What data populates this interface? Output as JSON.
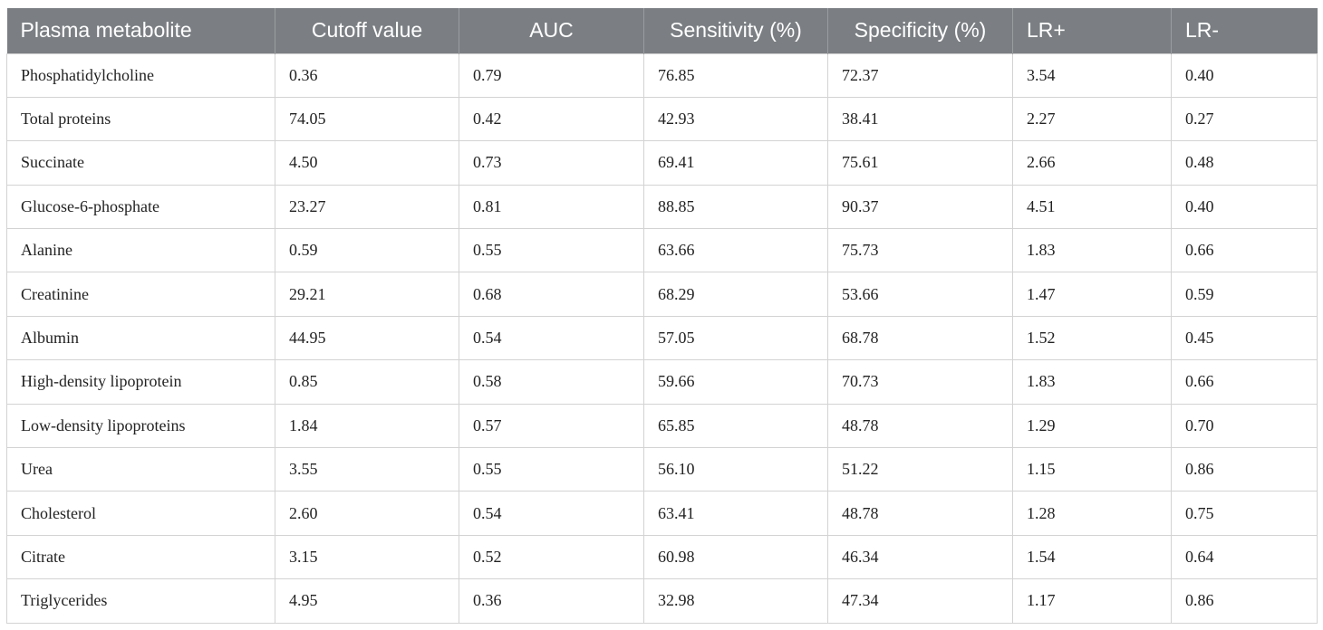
{
  "table": {
    "headers": [
      "Plasma metabolite",
      "Cutoff value",
      "AUC",
      "Sensitivity (%)",
      "Specificity (%)",
      "LR+",
      "LR-"
    ],
    "rows": [
      [
        "Phosphatidylcholine",
        "0.36",
        "0.79",
        "76.85",
        "72.37",
        "3.54",
        "0.40"
      ],
      [
        "Total proteins",
        "74.05",
        "0.42",
        "42.93",
        "38.41",
        "2.27",
        "0.27"
      ],
      [
        "Succinate",
        "4.50",
        "0.73",
        "69.41",
        "75.61",
        "2.66",
        "0.48"
      ],
      [
        "Glucose-6-phosphate",
        "23.27",
        "0.81",
        "88.85",
        "90.37",
        "4.51",
        "0.40"
      ],
      [
        "Alanine",
        "0.59",
        "0.55",
        "63.66",
        "75.73",
        "1.83",
        "0.66"
      ],
      [
        "Creatinine",
        "29.21",
        "0.68",
        "68.29",
        "53.66",
        "1.47",
        "0.59"
      ],
      [
        "Albumin",
        "44.95",
        "0.54",
        "57.05",
        "68.78",
        "1.52",
        "0.45"
      ],
      [
        "High-density lipoprotein",
        "0.85",
        "0.58",
        "59.66",
        "70.73",
        "1.83",
        "0.66"
      ],
      [
        "Low-density lipoproteins",
        "1.84",
        "0.57",
        "65.85",
        "48.78",
        "1.29",
        "0.70"
      ],
      [
        "Urea",
        "3.55",
        "0.55",
        "56.10",
        "51.22",
        "1.15",
        "0.86"
      ],
      [
        "Cholesterol",
        "2.60",
        "0.54",
        "63.41",
        "48.78",
        "1.28",
        "0.75"
      ],
      [
        "Citrate",
        "3.15",
        "0.52",
        "60.98",
        "46.34",
        "1.54",
        "0.64"
      ],
      [
        "Triglycerides",
        "4.95",
        "0.36",
        "32.98",
        "47.34",
        "1.17",
        "0.86"
      ]
    ]
  },
  "colors": {
    "header_bg": "#7b7f83",
    "header_text": "#ffffff",
    "border": "#d3d3d3"
  }
}
